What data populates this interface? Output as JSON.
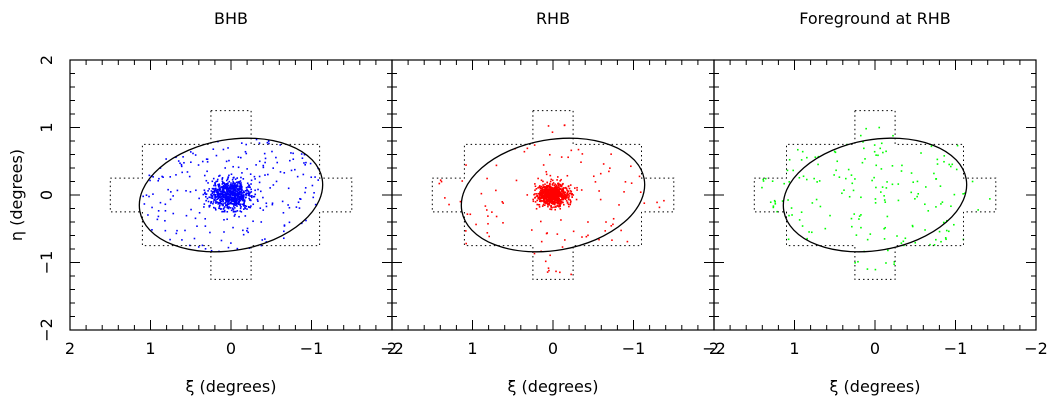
{
  "chart_data": [
    {
      "type": "scatter",
      "title": "BHB",
      "xlabel": "ξ (degrees)",
      "ylabel": "η (degrees)",
      "xlim": [
        2,
        -2
      ],
      "ylim": [
        -2,
        2
      ],
      "xticks": [
        2,
        1,
        0,
        -1,
        -2
      ],
      "yticks": [
        -2,
        -1,
        0,
        1,
        2
      ],
      "point_color": "#0000ff",
      "point_count": 900,
      "distribution": "dense central concentration (sigma ≈ 0.12 deg) plus diffuse halo within ellipse",
      "ellipse": {
        "center": [
          0,
          0
        ],
        "semi_axis_x": 1.15,
        "semi_axis_y": 0.82,
        "rotation_deg": 10
      },
      "footprint_outline": "dotted cross-shaped survey footprint",
      "grid": false
    },
    {
      "type": "scatter",
      "title": "RHB",
      "xlabel": "ξ (degrees)",
      "xlim": [
        2,
        -2
      ],
      "ylim": [
        -2,
        2
      ],
      "xticks": [
        2,
        1,
        0,
        -1,
        -2
      ],
      "yticks": [
        -2,
        -1,
        0,
        1,
        2
      ],
      "point_color": "#ff0000",
      "point_count": 1000,
      "distribution": "very dense compact core (sigma ≈ 0.09 deg) plus sparse halo within footprint",
      "ellipse": {
        "center": [
          0,
          0
        ],
        "semi_axis_x": 1.15,
        "semi_axis_y": 0.82,
        "rotation_deg": 10
      },
      "footprint_outline": "dotted cross-shaped survey footprint",
      "grid": false
    },
    {
      "type": "scatter",
      "title": "Foreground at RHB",
      "xlabel": "ξ (degrees)",
      "xlim": [
        2,
        -2
      ],
      "ylim": [
        -2,
        2
      ],
      "xticks": [
        2,
        1,
        0,
        -1,
        -2
      ],
      "yticks": [
        -2,
        -1,
        0,
        1,
        2
      ],
      "point_color": "#00ff00",
      "point_count": 180,
      "distribution": "roughly uniform across survey footprint",
      "ellipse": {
        "center": [
          0,
          0
        ],
        "semi_axis_x": 1.15,
        "semi_axis_y": 0.82,
        "rotation_deg": 10
      },
      "footprint_outline": "dotted cross-shaped survey footprint",
      "grid": false
    }
  ]
}
